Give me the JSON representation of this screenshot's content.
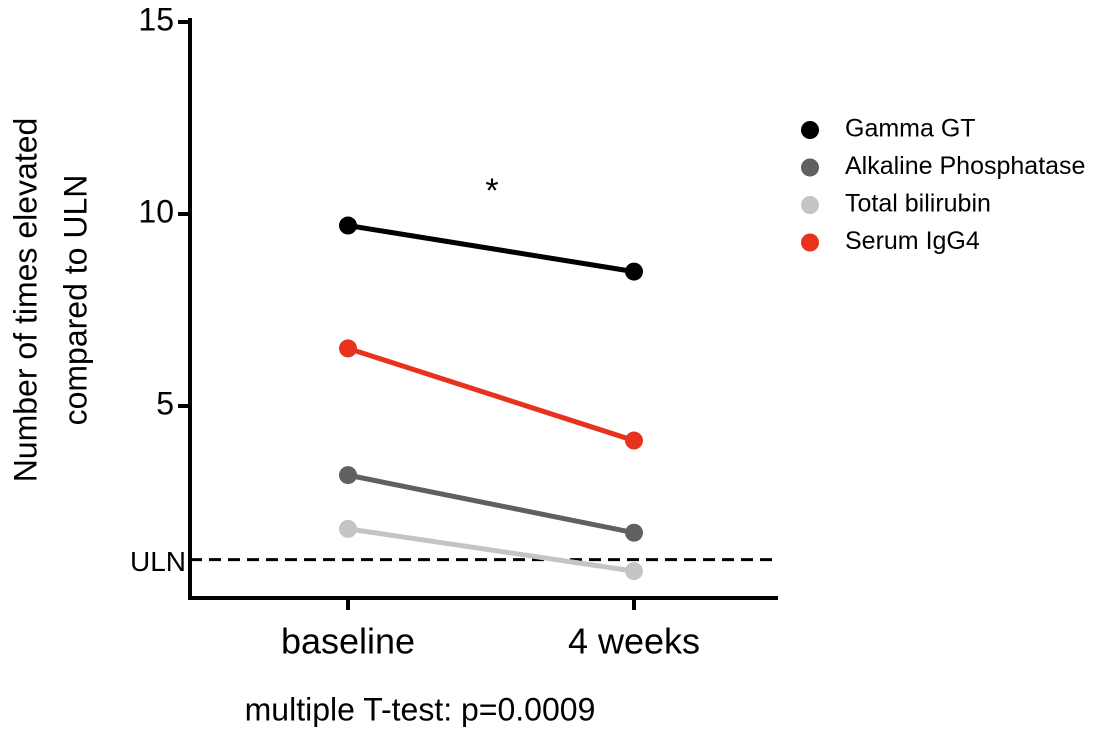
{
  "chart_data": {
    "type": "line",
    "ylabel": [
      "Number of times elevated",
      "compared to ULN"
    ],
    "categories": [
      "baseline",
      "4 weeks"
    ],
    "series": [
      {
        "name": "Gamma GT",
        "color": "#000000",
        "values": [
          9.7,
          8.5
        ]
      },
      {
        "name": "Alkaline Phosphatase",
        "color": "#606060",
        "values": [
          3.2,
          1.7
        ]
      },
      {
        "name": "Total bilirubin",
        "color": "#c4c4c4",
        "values": [
          1.8,
          0.7
        ]
      },
      {
        "name": "Serum IgG4",
        "color": "#e8321e",
        "values": [
          6.5,
          4.1
        ]
      }
    ],
    "ylim": [
      0,
      15
    ],
    "yticks": [
      5,
      10,
      15
    ],
    "reference_line": {
      "value": 1,
      "label": "ULN"
    },
    "annotation": "*",
    "note": "multiple T-test: p=0.0009",
    "legend": "right"
  }
}
